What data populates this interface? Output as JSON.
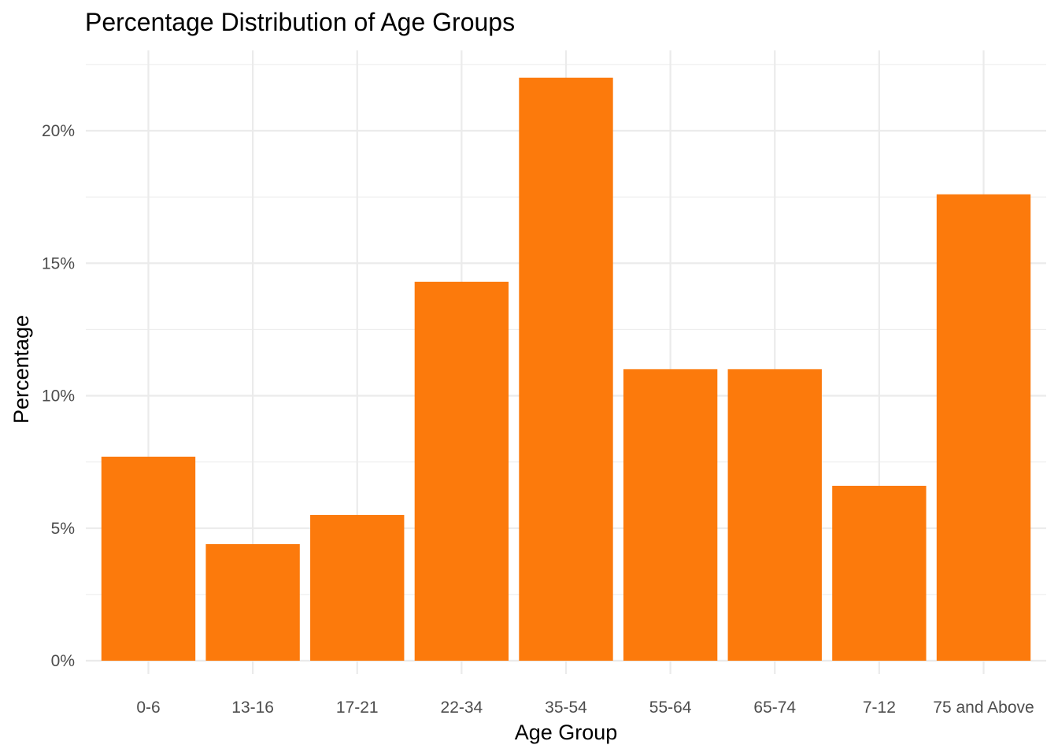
{
  "chart_data": {
    "type": "bar",
    "title": "Percentage Distribution of Age Groups",
    "xlabel": "Age Group",
    "ylabel": "Percentage",
    "categories": [
      "0-6",
      "13-16",
      "17-21",
      "22-34",
      "35-54",
      "55-64",
      "65-74",
      "7-12",
      "75 and Above"
    ],
    "values": [
      7.7,
      4.4,
      5.5,
      14.3,
      22.0,
      11.0,
      11.0,
      6.6,
      17.6
    ],
    "y_ticks": [
      0,
      5,
      10,
      15,
      20
    ],
    "y_tick_labels": [
      "0%",
      "5%",
      "10%",
      "15%",
      "20%"
    ],
    "ylim": [
      0,
      22.0
    ],
    "bar_color": "#fc7a0c",
    "grid": true,
    "legend": "none"
  }
}
